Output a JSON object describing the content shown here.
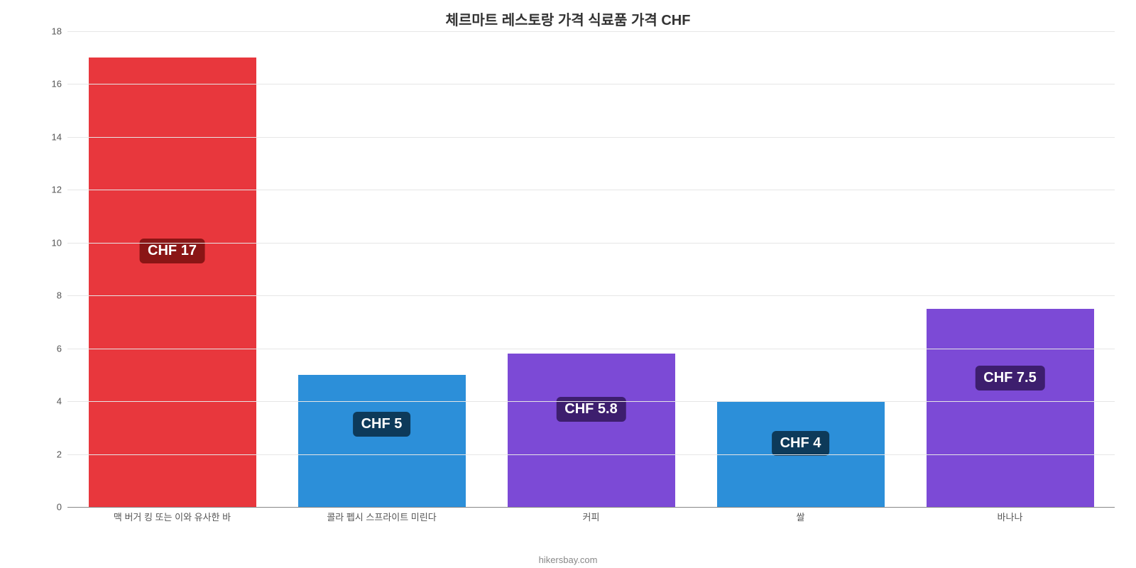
{
  "chart": {
    "type": "bar",
    "title": "체르마트 레스토랑 가격 식료품 가격 CHF",
    "title_fontsize": 20,
    "title_color": "#333333",
    "background_color": "#ffffff",
    "grid_color": "#e6e6e6",
    "axis_color": "#888888",
    "ylim": [
      0,
      18
    ],
    "ytick_step": 2,
    "yticks": [
      "0",
      "2",
      "4",
      "6",
      "8",
      "10",
      "12",
      "14",
      "16",
      "18"
    ],
    "tick_fontsize": 13,
    "tick_color": "#555555",
    "bar_width_pct": 80,
    "value_label_fontsize": 20,
    "categories": [
      "맥 버거 킹 또는 이와 유사한 바",
      "콜라 펩시 스프라이트 미린다",
      "커피",
      "쌀",
      "바나나"
    ],
    "values": [
      17,
      5,
      5.8,
      4,
      7.5
    ],
    "value_labels": [
      "CHF 17",
      "CHF 5",
      "CHF 5.8",
      "CHF 4",
      "CHF 7.5"
    ],
    "bar_colors": [
      "#e8373d",
      "#2c8fd9",
      "#7c4ad6",
      "#2c8fd9",
      "#7c4ad6"
    ],
    "label_bg_colors": [
      "#8a1515",
      "#0d3a5a",
      "#3d1e6e",
      "#0d3a5a",
      "#3d1e6e"
    ],
    "label_text_color": "#ffffff",
    "source": "hikersbay.com",
    "source_color": "#888888",
    "source_fontsize": 13
  }
}
